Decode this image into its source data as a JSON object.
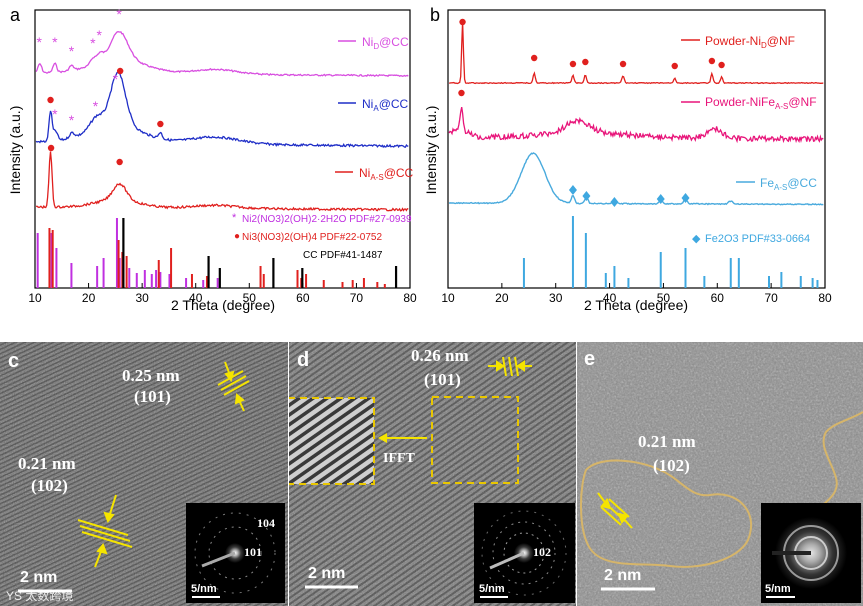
{
  "panels": {
    "a": {
      "letter": "a"
    },
    "b": {
      "letter": "b"
    },
    "c": {
      "letter": "c"
    },
    "d": {
      "letter": "d"
    },
    "e": {
      "letter": "e"
    }
  },
  "chart_data": [
    {
      "type": "line",
      "title": "",
      "xlabel": "2 Theta (degree)",
      "ylabel": "Intensity (a.u.)",
      "xlim": [
        10,
        80
      ],
      "xticks": [
        "10",
        "20",
        "30",
        "40",
        "50",
        "60",
        "70",
        "80"
      ],
      "series": [
        {
          "name": "Ni_D@CC",
          "label": "Ni",
          "sub": "D",
          "suffix": "@CC",
          "color": "#d84fe0"
        },
        {
          "name": "Ni_A@CC",
          "label": "Ni",
          "sub": "A",
          "suffix": "@CC",
          "color": "#1f2ec7"
        },
        {
          "name": "Ni_A-S@CC",
          "label": "Ni",
          "sub": "A-S",
          "suffix": "@CC",
          "color": "#e0201e"
        }
      ],
      "references": [
        {
          "marker": "*",
          "text": "Ni2(NO3)2(OH)2·2H2O PDF#27-0939",
          "color": "#c030e0",
          "positions": [
            10.5,
            13.1,
            14.0,
            16.8,
            21.6,
            22.8,
            25.3,
            25.8,
            26.4,
            27.6,
            29.0,
            30.5,
            31.8,
            32.6,
            33.4,
            35.1,
            38.2,
            41.4,
            44.1
          ]
        },
        {
          "marker": "●",
          "text": "Ni3(NO3)2(OH)4 PDF#22-0752",
          "color": "#e0201e",
          "positions": [
            12.7,
            13.3,
            25.6,
            26.3,
            27.1,
            33.1,
            35.4,
            39.3,
            42.1,
            52.1,
            52.7,
            59.0,
            59.7,
            60.6,
            63.9,
            67.4,
            69.3,
            71.4,
            73.9,
            75.3
          ]
        },
        {
          "marker": "",
          "text": "CC PDF#41-1487",
          "color": "#000000",
          "positions": [
            26.5,
            42.4,
            44.5,
            54.5,
            59.9,
            77.4
          ]
        }
      ],
      "peak_markers": {
        "star": [
          10.8,
          13.7,
          16.8,
          20.8,
          22.0,
          25.7
        ],
        "dot": [
          12.9,
          33.4
        ]
      }
    },
    {
      "type": "line",
      "title": "",
      "xlabel": "2 Theta (degree)",
      "ylabel": "Intensity (a.u.)",
      "xlim": [
        10,
        80
      ],
      "xticks": [
        "10",
        "20",
        "30",
        "40",
        "50",
        "60",
        "70",
        "80"
      ],
      "series": [
        {
          "name": "Powder-Ni_D@NF",
          "label": "Powder-Ni",
          "sub": "D",
          "suffix": "@NF",
          "color": "#e0201e"
        },
        {
          "name": "Powder-NiFe_A-S@NF",
          "label": "Powder-NiFe",
          "sub": "A-S",
          "suffix": "@NF",
          "color": "#e8157a"
        },
        {
          "name": "Fe_A-S@CC",
          "label": "Fe",
          "sub": "A-S",
          "suffix": "@CC",
          "color": "#49aadd"
        }
      ],
      "references": [
        {
          "marker": "◆",
          "text": "Fe2O3 PDF#33-0664",
          "color": "#3fa8e0",
          "positions": [
            24.1,
            33.2,
            35.6,
            39.3,
            40.9,
            43.5,
            49.5,
            54.1,
            57.6,
            62.5,
            64.0,
            69.6,
            71.9,
            75.5,
            77.7,
            78.6
          ]
        }
      ],
      "peak_markers": {
        "dot": [
          12.7,
          26.0,
          33.2,
          35.5,
          42.5,
          52.1,
          59.0,
          60.8
        ],
        "dot_pink": [
          12.5
        ],
        "diamond": [
          33.2,
          35.7,
          40.9,
          49.5,
          54.1
        ]
      }
    }
  ],
  "tem": {
    "c": {
      "spacing1": "0.25 nm",
      "plane1": "(101)",
      "spacing2": "0.21 nm",
      "plane2": "(102)",
      "scale": "2 nm",
      "inset_scale": "5/nm",
      "ring1": "104",
      "ring2": "101",
      "watermark": "YS 太数跨境"
    },
    "d": {
      "spacing": "0.26 nm",
      "plane": "(101)",
      "ifft": "IFFT",
      "scale": "2 nm",
      "inset_scale": "5/nm",
      "ring": "102"
    },
    "e": {
      "spacing": "0.21 nm",
      "plane": "(102)",
      "scale": "2 nm",
      "inset_scale": "5/nm"
    }
  },
  "colors": {
    "yellow": "#f5e400",
    "dashed": "#e9c700",
    "outline": "#d6b56a"
  }
}
